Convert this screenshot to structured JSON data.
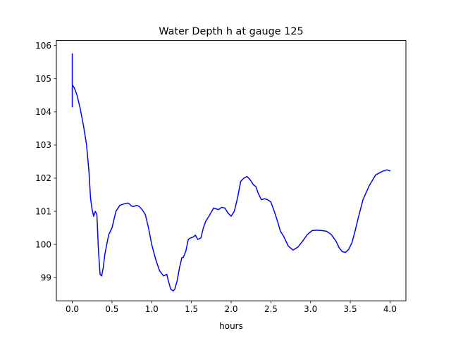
{
  "chart_data": {
    "type": "line",
    "title": "Water Depth h at gauge 125",
    "xlabel": "hours",
    "ylabel": "",
    "xlim": [
      -0.2,
      4.2
    ],
    "ylim": [
      98.3,
      106.15
    ],
    "xticks": [
      0.0,
      0.5,
      1.0,
      1.5,
      2.0,
      2.5,
      3.0,
      3.5,
      4.0
    ],
    "xtick_labels": [
      "0.0",
      "0.5",
      "1.0",
      "1.5",
      "2.0",
      "2.5",
      "3.0",
      "3.5",
      "4.0"
    ],
    "yticks": [
      99,
      100,
      101,
      102,
      103,
      104,
      105,
      106
    ],
    "ytick_labels": [
      "99",
      "100",
      "101",
      "102",
      "103",
      "104",
      "105",
      "106"
    ],
    "grid": false,
    "colors": {
      "line": "#0000ff"
    },
    "series": [
      {
        "x": [
          0.0,
          0.0,
          0.0,
          0.0,
          0.03,
          0.06,
          0.1,
          0.14,
          0.18,
          0.21,
          0.23,
          0.25,
          0.27,
          0.29,
          0.31,
          0.33,
          0.35,
          0.37,
          0.39,
          0.41,
          0.43,
          0.46,
          0.5,
          0.55,
          0.6,
          0.65,
          0.7,
          0.72,
          0.75,
          0.78,
          0.81,
          0.84,
          0.88,
          0.92,
          0.96,
          1.0,
          1.05,
          1.1,
          1.15,
          1.19,
          1.21,
          1.24,
          1.27,
          1.29,
          1.32,
          1.35,
          1.38,
          1.4,
          1.43,
          1.46,
          1.49,
          1.52,
          1.55,
          1.58,
          1.62,
          1.65,
          1.68,
          1.72,
          1.78,
          1.84,
          1.88,
          1.92,
          1.96,
          2.0,
          2.04,
          2.08,
          2.12,
          2.16,
          2.2,
          2.24,
          2.28,
          2.31,
          2.34,
          2.38,
          2.42,
          2.46,
          2.5,
          2.55,
          2.59,
          2.62,
          2.66,
          2.72,
          2.78,
          2.84,
          2.9,
          2.96,
          3.02,
          3.08,
          3.14,
          3.2,
          3.26,
          3.32,
          3.36,
          3.4,
          3.44,
          3.48,
          3.52,
          3.56,
          3.6,
          3.66,
          3.74,
          3.82,
          3.9,
          3.96,
          4.0
        ],
        "y": [
          104.15,
          105.75,
          104.8,
          104.82,
          104.7,
          104.5,
          104.1,
          103.6,
          103.0,
          102.2,
          101.4,
          101.05,
          100.85,
          101.0,
          100.9,
          99.8,
          99.1,
          99.05,
          99.3,
          99.7,
          99.95,
          100.3,
          100.5,
          101.0,
          101.18,
          101.22,
          101.25,
          101.22,
          101.15,
          101.15,
          101.18,
          101.15,
          101.05,
          100.9,
          100.5,
          100.0,
          99.55,
          99.2,
          99.05,
          99.1,
          98.9,
          98.65,
          98.6,
          98.65,
          98.9,
          99.3,
          99.6,
          99.62,
          99.8,
          100.15,
          100.2,
          100.22,
          100.28,
          100.15,
          100.2,
          100.5,
          100.7,
          100.85,
          101.1,
          101.05,
          101.12,
          101.1,
          100.95,
          100.85,
          101.0,
          101.4,
          101.9,
          102.0,
          102.05,
          101.95,
          101.8,
          101.75,
          101.55,
          101.35,
          101.38,
          101.35,
          101.28,
          100.95,
          100.65,
          100.4,
          100.25,
          99.95,
          99.83,
          99.92,
          100.1,
          100.3,
          100.42,
          100.43,
          100.42,
          100.4,
          100.3,
          100.1,
          99.9,
          99.78,
          99.76,
          99.85,
          100.05,
          100.4,
          100.8,
          101.35,
          101.78,
          102.1,
          102.2,
          102.25,
          102.22
        ]
      }
    ]
  }
}
